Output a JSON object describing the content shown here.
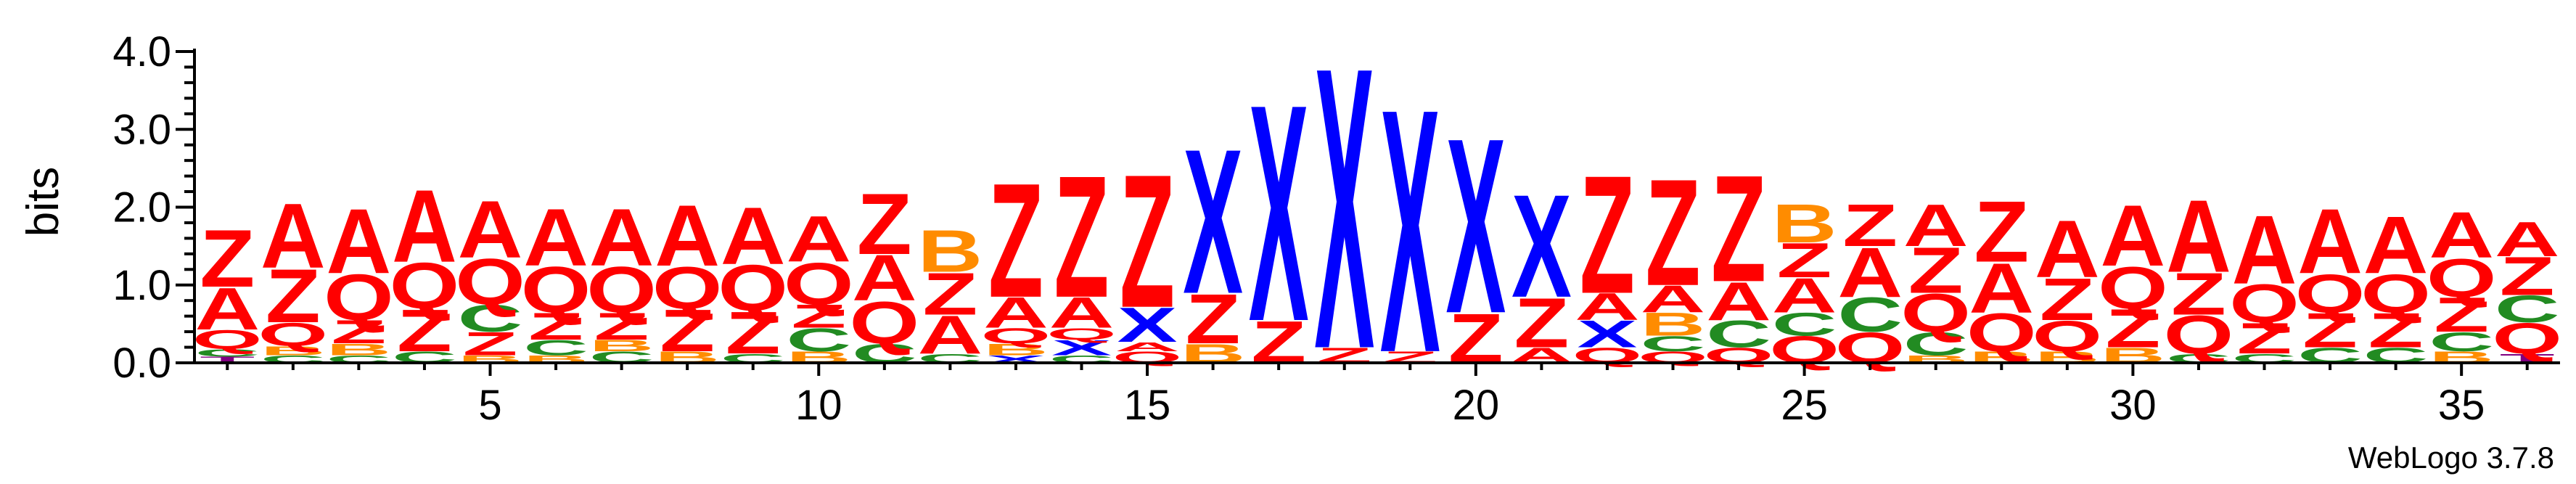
{
  "chart_data": {
    "type": "sequence-logo",
    "ylabel": "bits",
    "ylim": [
      0,
      4.0
    ],
    "yticks": [
      0.0,
      1.0,
      2.0,
      3.0,
      4.0
    ],
    "ytick_labels": [
      "0.0",
      "1.0",
      "2.0",
      "3.0",
      "4.0"
    ],
    "y_minor_tick_step": 0.2,
    "xlim": [
      0.5,
      36.5
    ],
    "xticks": [
      5,
      10,
      15,
      20,
      25,
      30,
      35
    ],
    "xtick_labels": [
      "5",
      "10",
      "15",
      "20",
      "25",
      "30",
      "35"
    ],
    "credit": "WebLogo 3.7.8",
    "colors": {
      "A": "#ff0000",
      "Z": "#ff0000",
      "Q": "#ff0000",
      "X": "#0000ff",
      "C": "#228b22",
      "B": "#ff8c00",
      "T": "#800080"
    },
    "positions": [
      {
        "pos": 1,
        "letters": [
          {
            "l": "T",
            "h": 0.08
          },
          {
            "l": "C",
            "h": 0.1
          },
          {
            "l": "Q",
            "h": 0.25
          },
          {
            "l": "A",
            "h": 0.55
          },
          {
            "l": "Z",
            "h": 0.75
          }
        ]
      },
      {
        "pos": 2,
        "letters": [
          {
            "l": "C",
            "h": 0.1
          },
          {
            "l": "B",
            "h": 0.12
          },
          {
            "l": "Q",
            "h": 0.3
          },
          {
            "l": "Z",
            "h": 0.7
          },
          {
            "l": "A",
            "h": 0.85
          }
        ]
      },
      {
        "pos": 3,
        "letters": [
          {
            "l": "C",
            "h": 0.1
          },
          {
            "l": "B",
            "h": 0.15
          },
          {
            "l": "Z",
            "h": 0.3
          },
          {
            "l": "Q",
            "h": 0.6
          },
          {
            "l": "A",
            "h": 0.85
          }
        ]
      },
      {
        "pos": 4,
        "letters": [
          {
            "l": "C",
            "h": 0.15
          },
          {
            "l": "Z",
            "h": 0.55
          },
          {
            "l": "Q",
            "h": 0.6
          },
          {
            "l": "A",
            "h": 0.95
          }
        ]
      },
      {
        "pos": 5,
        "letters": [
          {
            "l": "B",
            "h": 0.1
          },
          {
            "l": "Z",
            "h": 0.3
          },
          {
            "l": "C",
            "h": 0.35
          },
          {
            "l": "Q",
            "h": 0.6
          },
          {
            "l": "A",
            "h": 0.75
          }
        ]
      },
      {
        "pos": 6,
        "letters": [
          {
            "l": "B",
            "h": 0.1
          },
          {
            "l": "C",
            "h": 0.2
          },
          {
            "l": "Z",
            "h": 0.35
          },
          {
            "l": "Q",
            "h": 0.6
          },
          {
            "l": "A",
            "h": 0.75
          }
        ]
      },
      {
        "pos": 7,
        "letters": [
          {
            "l": "C",
            "h": 0.15
          },
          {
            "l": "B",
            "h": 0.15
          },
          {
            "l": "Z",
            "h": 0.35
          },
          {
            "l": "Q",
            "h": 0.6
          },
          {
            "l": "A",
            "h": 0.75
          }
        ]
      },
      {
        "pos": 8,
        "letters": [
          {
            "l": "B",
            "h": 0.15
          },
          {
            "l": "Z",
            "h": 0.55
          },
          {
            "l": "Q",
            "h": 0.55
          },
          {
            "l": "A",
            "h": 0.8
          }
        ]
      },
      {
        "pos": 9,
        "letters": [
          {
            "l": "C",
            "h": 0.12
          },
          {
            "l": "Z",
            "h": 0.55
          },
          {
            "l": "Q",
            "h": 0.6
          },
          {
            "l": "A",
            "h": 0.75
          }
        ]
      },
      {
        "pos": 10,
        "letters": [
          {
            "l": "B",
            "h": 0.15
          },
          {
            "l": "C",
            "h": 0.3
          },
          {
            "l": "Z",
            "h": 0.3
          },
          {
            "l": "Q",
            "h": 0.55
          },
          {
            "l": "A",
            "h": 0.6
          }
        ]
      },
      {
        "pos": 11,
        "letters": [
          {
            "l": "C",
            "h": 0.25
          },
          {
            "l": "Q",
            "h": 0.55
          },
          {
            "l": "A",
            "h": 0.6
          },
          {
            "l": "Z",
            "h": 0.8
          }
        ]
      },
      {
        "pos": 12,
        "letters": [
          {
            "l": "C",
            "h": 0.12
          },
          {
            "l": "A",
            "h": 0.5
          },
          {
            "l": "Z",
            "h": 0.55
          },
          {
            "l": "B",
            "h": 0.55
          }
        ]
      },
      {
        "pos": 13,
        "letters": [
          {
            "l": "X",
            "h": 0.1
          },
          {
            "l": "B",
            "h": 0.15
          },
          {
            "l": "Q",
            "h": 0.2
          },
          {
            "l": "A",
            "h": 0.4
          },
          {
            "l": "Z",
            "h": 1.5
          }
        ]
      },
      {
        "pos": 14,
        "letters": [
          {
            "l": "C",
            "h": 0.1
          },
          {
            "l": "X",
            "h": 0.2
          },
          {
            "l": "Q",
            "h": 0.15
          },
          {
            "l": "A",
            "h": 0.4
          },
          {
            "l": "Z",
            "h": 1.6
          }
        ]
      },
      {
        "pos": 15,
        "letters": [
          {
            "l": "Q",
            "h": 0.15
          },
          {
            "l": "A",
            "h": 0.12
          },
          {
            "l": "X",
            "h": 0.45
          },
          {
            "l": "Z",
            "h": 1.75
          }
        ]
      },
      {
        "pos": 16,
        "letters": [
          {
            "l": "B",
            "h": 0.25
          },
          {
            "l": "Z",
            "h": 0.65
          },
          {
            "l": "X",
            "h": 1.9
          }
        ]
      },
      {
        "pos": 17,
        "letters": [
          {
            "l": "Z",
            "h": 0.55
          },
          {
            "l": "X",
            "h": 2.85
          }
        ]
      },
      {
        "pos": 18,
        "letters": [
          {
            "l": "Z",
            "h": 0.2
          },
          {
            "l": "X",
            "h": 3.7
          }
        ]
      },
      {
        "pos": 19,
        "letters": [
          {
            "l": "Z",
            "h": 0.15
          },
          {
            "l": "X",
            "h": 3.2
          }
        ]
      },
      {
        "pos": 20,
        "letters": [
          {
            "l": "Z",
            "h": 0.65
          },
          {
            "l": "X",
            "h": 2.3
          }
        ]
      },
      {
        "pos": 21,
        "letters": [
          {
            "l": "A",
            "h": 0.2
          },
          {
            "l": "Z",
            "h": 0.65
          },
          {
            "l": "X",
            "h": 1.35
          }
        ]
      },
      {
        "pos": 22,
        "letters": [
          {
            "l": "Q",
            "h": 0.2
          },
          {
            "l": "X",
            "h": 0.35
          },
          {
            "l": "A",
            "h": 0.35
          },
          {
            "l": "Z",
            "h": 1.55
          }
        ]
      },
      {
        "pos": 23,
        "letters": [
          {
            "l": "Q",
            "h": 0.15
          },
          {
            "l": "C",
            "h": 0.2
          },
          {
            "l": "B",
            "h": 0.3
          },
          {
            "l": "A",
            "h": 0.35
          },
          {
            "l": "Z",
            "h": 1.4
          }
        ]
      },
      {
        "pos": 24,
        "letters": [
          {
            "l": "Q",
            "h": 0.2
          },
          {
            "l": "C",
            "h": 0.35
          },
          {
            "l": "A",
            "h": 0.5
          },
          {
            "l": "Z",
            "h": 1.4
          }
        ]
      },
      {
        "pos": 25,
        "letters": [
          {
            "l": "Q",
            "h": 0.35
          },
          {
            "l": "C",
            "h": 0.3
          },
          {
            "l": "A",
            "h": 0.45
          },
          {
            "l": "Z",
            "h": 0.45
          },
          {
            "l": "B",
            "h": 0.5
          }
        ]
      },
      {
        "pos": 26,
        "letters": [
          {
            "l": "Q",
            "h": 0.4
          },
          {
            "l": "C",
            "h": 0.45
          },
          {
            "l": "A",
            "h": 0.65
          },
          {
            "l": "Z",
            "h": 0.55
          }
        ]
      },
      {
        "pos": 27,
        "letters": [
          {
            "l": "B",
            "h": 0.1
          },
          {
            "l": "C",
            "h": 0.3
          },
          {
            "l": "Q",
            "h": 0.5
          },
          {
            "l": "Z",
            "h": 0.6
          },
          {
            "l": "A",
            "h": 0.55
          }
        ]
      },
      {
        "pos": 28,
        "letters": [
          {
            "l": "B",
            "h": 0.15
          },
          {
            "l": "Q",
            "h": 0.5
          },
          {
            "l": "A",
            "h": 0.65
          },
          {
            "l": "Z",
            "h": 0.8
          }
        ]
      },
      {
        "pos": 29,
        "letters": [
          {
            "l": "B",
            "h": 0.15
          },
          {
            "l": "Q",
            "h": 0.4
          },
          {
            "l": "Z",
            "h": 0.55
          },
          {
            "l": "A",
            "h": 0.75
          }
        ]
      },
      {
        "pos": 30,
        "letters": [
          {
            "l": "B",
            "h": 0.2
          },
          {
            "l": "Z",
            "h": 0.5
          },
          {
            "l": "Q",
            "h": 0.55
          },
          {
            "l": "A",
            "h": 0.8
          }
        ]
      },
      {
        "pos": 31,
        "letters": [
          {
            "l": "C",
            "h": 0.12
          },
          {
            "l": "Q",
            "h": 0.5
          },
          {
            "l": "Z",
            "h": 0.55
          },
          {
            "l": "A",
            "h": 0.95
          }
        ]
      },
      {
        "pos": 32,
        "letters": [
          {
            "l": "C",
            "h": 0.12
          },
          {
            "l": "Z",
            "h": 0.4
          },
          {
            "l": "Q",
            "h": 0.5
          },
          {
            "l": "A",
            "h": 0.9
          }
        ]
      },
      {
        "pos": 33,
        "letters": [
          {
            "l": "C",
            "h": 0.2
          },
          {
            "l": "Z",
            "h": 0.45
          },
          {
            "l": "Q",
            "h": 0.5
          },
          {
            "l": "A",
            "h": 0.85
          }
        ]
      },
      {
        "pos": 34,
        "letters": [
          {
            "l": "C",
            "h": 0.2
          },
          {
            "l": "Z",
            "h": 0.45
          },
          {
            "l": "Q",
            "h": 0.5
          },
          {
            "l": "A",
            "h": 0.75
          }
        ]
      },
      {
        "pos": 35,
        "letters": [
          {
            "l": "B",
            "h": 0.15
          },
          {
            "l": "C",
            "h": 0.25
          },
          {
            "l": "Z",
            "h": 0.45
          },
          {
            "l": "Q",
            "h": 0.5
          },
          {
            "l": "A",
            "h": 0.6
          }
        ]
      },
      {
        "pos": 36,
        "letters": [
          {
            "l": "T",
            "h": 0.12
          },
          {
            "l": "Q",
            "h": 0.4
          },
          {
            "l": "C",
            "h": 0.35
          },
          {
            "l": "Z",
            "h": 0.5
          },
          {
            "l": "A",
            "h": 0.45
          }
        ]
      }
    ]
  }
}
